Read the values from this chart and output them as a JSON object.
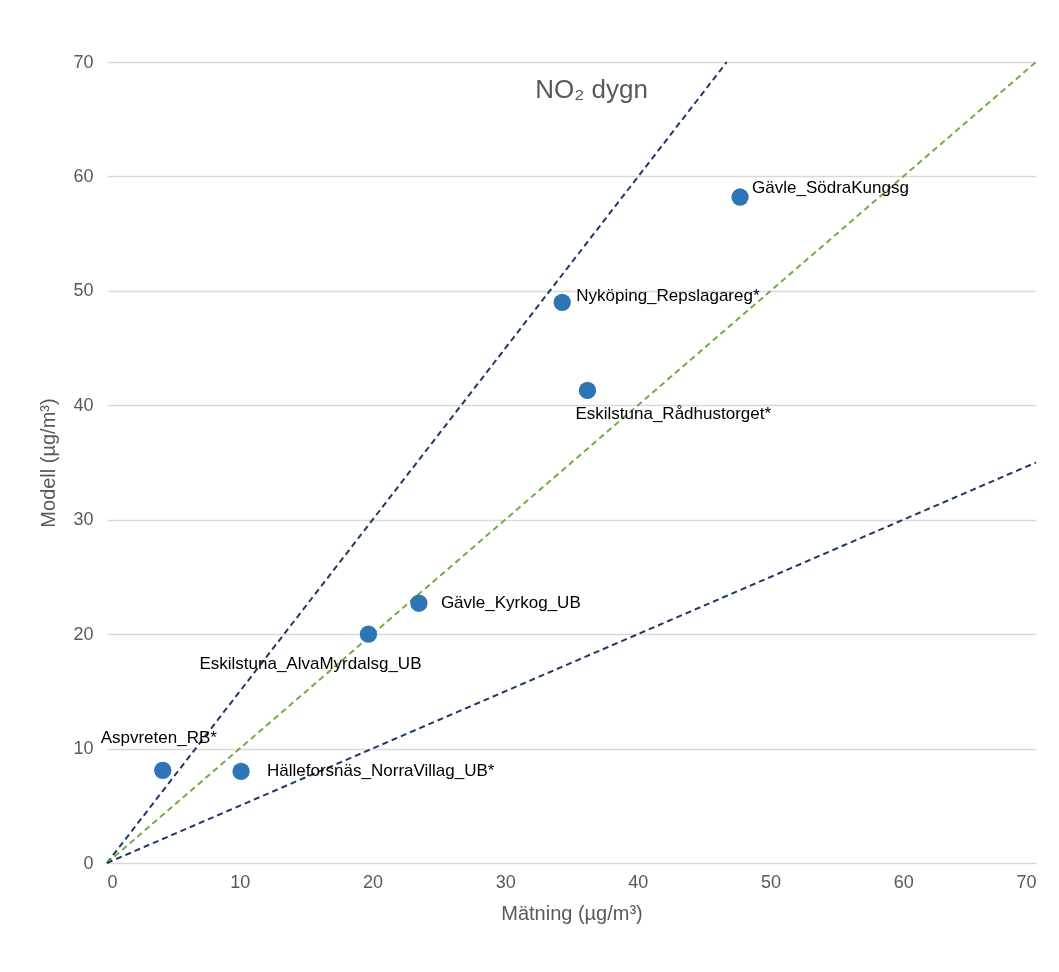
{
  "chart_data": {
    "type": "scatter",
    "title": "NO₂ dygn",
    "xlabel": "Mätning (µg/m³)",
    "ylabel": "Modell (µg/m³)",
    "xlim": [
      0,
      70
    ],
    "ylim": [
      0,
      70
    ],
    "xticks": [
      0,
      10,
      20,
      30,
      40,
      50,
      60,
      70
    ],
    "yticks": [
      0,
      10,
      20,
      30,
      40,
      50,
      60,
      70
    ],
    "grid": "y",
    "series": [
      {
        "type": "line",
        "color": "#203864",
        "line_style": "dashed",
        "marker": "none",
        "x": [
          0,
          46.7
        ],
        "values": [
          0,
          70
        ]
      },
      {
        "type": "line",
        "color": "#70ad47",
        "line_style": "dashed",
        "marker": "none",
        "x": [
          0,
          70
        ],
        "values": [
          0,
          70
        ]
      },
      {
        "type": "line",
        "color": "#203864",
        "line_style": "dashed",
        "marker": "none",
        "x": [
          0,
          70
        ],
        "values": [
          0,
          35
        ]
      },
      {
        "color": "#2e75b6",
        "marker": "circle",
        "x": [
          47.7,
          34.3,
          36.2,
          23.5,
          19.7,
          4.2,
          10.1
        ],
        "values": [
          58.2,
          49.0,
          41.3,
          22.7,
          20.0,
          8.1,
          8.0
        ]
      }
    ],
    "annotations": [
      {
        "text": "Gävle_SödraKungsg",
        "x": 47.7,
        "y": 58.2
      },
      {
        "text": "Nyköping_Repslagareg*",
        "x": 34.3,
        "y": 49.0
      },
      {
        "text": "Eskilstuna_Rådhustorget*",
        "x": 36.2,
        "y": 41.3
      },
      {
        "text": "Gävle_Kyrkog_UB",
        "x": 23.5,
        "y": 22.7
      },
      {
        "text": "Eskilstuna_AlvaMyrdalsg_UB",
        "x": 19.7,
        "y": 20.0
      },
      {
        "text": "Aspvreten_RB*",
        "x": 4.2,
        "y": 8.1
      },
      {
        "text": "Hälleforsnäs_NorraVillag_UB*",
        "x": 10.1,
        "y": 8.0
      }
    ]
  }
}
